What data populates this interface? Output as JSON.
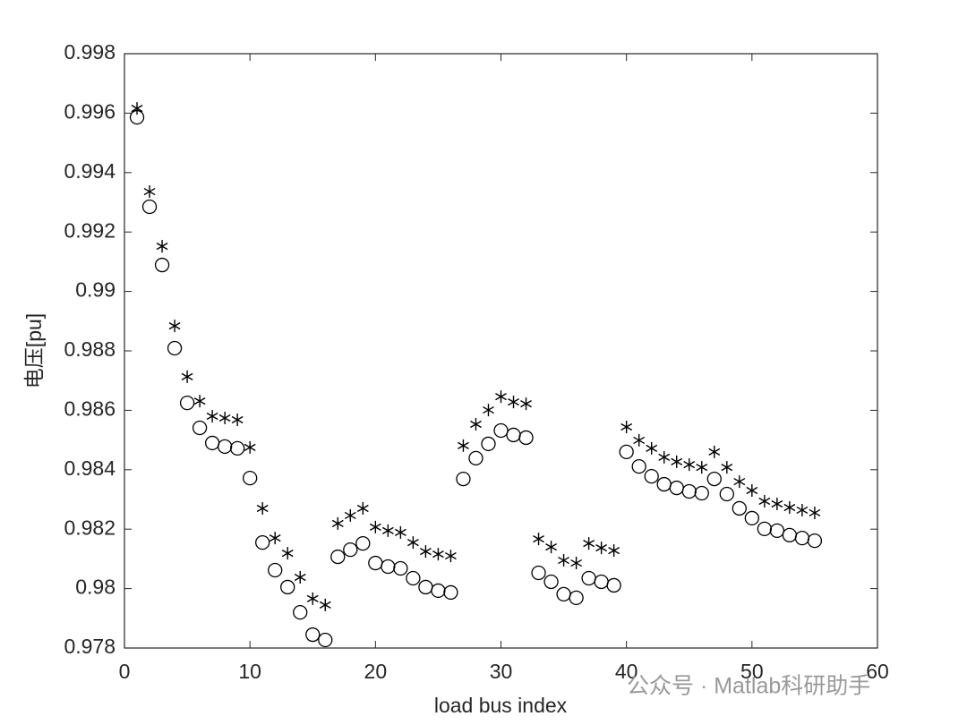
{
  "chart_data": {
    "type": "scatter",
    "xlabel": "load bus index",
    "ylabel": "电压[pu]",
    "watermark": "公众号 · Matlab科研助手",
    "x": [
      1,
      2,
      3,
      4,
      5,
      6,
      7,
      8,
      9,
      10,
      11,
      12,
      13,
      14,
      15,
      16,
      17,
      18,
      19,
      20,
      21,
      22,
      23,
      24,
      25,
      26,
      27,
      28,
      29,
      30,
      31,
      32,
      33,
      34,
      35,
      36,
      37,
      38,
      39,
      40,
      41,
      42,
      43,
      44,
      45,
      46,
      47,
      48,
      49,
      50,
      51,
      52,
      53,
      54,
      55
    ],
    "series": [
      {
        "marker": "o",
        "color": "#000000",
        "values": [
          0.99586,
          0.99285,
          0.99089,
          0.98809,
          0.98625,
          0.98541,
          0.9849,
          0.98478,
          0.98472,
          0.98372,
          0.98155,
          0.98062,
          0.98005,
          0.9792,
          0.97845,
          0.97827,
          0.98107,
          0.98131,
          0.98152,
          0.98086,
          0.98074,
          0.98068,
          0.98035,
          0.98005,
          0.97993,
          0.97987,
          0.98369,
          0.98439,
          0.98487,
          0.98532,
          0.98517,
          0.98508,
          0.98053,
          0.98023,
          0.97981,
          0.97969,
          0.98035,
          0.98023,
          0.98011,
          0.9846,
          0.98411,
          0.98378,
          0.98351,
          0.98339,
          0.98327,
          0.98321,
          0.98369,
          0.98318,
          0.9827,
          0.98237,
          0.98201,
          0.98195,
          0.9818,
          0.9817,
          0.98161
        ]
      },
      {
        "marker": "*",
        "color": "#000000",
        "values": [
          0.99616,
          0.99336,
          0.99152,
          0.98884,
          0.98713,
          0.98631,
          0.9858,
          0.98574,
          0.98568,
          0.98475,
          0.9827,
          0.9817,
          0.98119,
          0.98038,
          0.97966,
          0.97945,
          0.98219,
          0.98246,
          0.9827,
          0.98207,
          0.98195,
          0.98189,
          0.98155,
          0.98125,
          0.98116,
          0.9811,
          0.98481,
          0.98553,
          0.98601,
          0.98646,
          0.98628,
          0.98622,
          0.98167,
          0.9814,
          0.98095,
          0.98086,
          0.98152,
          0.98137,
          0.98128,
          0.98544,
          0.98499,
          0.98472,
          0.98442,
          0.98427,
          0.98417,
          0.98408,
          0.9846,
          0.98408,
          0.9836,
          0.9833,
          0.98294,
          0.98285,
          0.98273,
          0.98264,
          0.98255
        ]
      }
    ],
    "xlim": [
      0,
      60
    ],
    "xticks": [
      0,
      10,
      20,
      30,
      40,
      50,
      60
    ],
    "ylim": [
      0.978,
      0.998
    ],
    "yticks": [
      0.978,
      0.98,
      0.982,
      0.984,
      0.986,
      0.988,
      0.99,
      0.992,
      0.994,
      0.996,
      0.998
    ],
    "grid": false
  }
}
